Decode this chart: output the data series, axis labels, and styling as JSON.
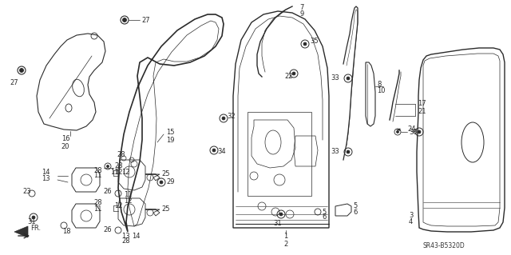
{
  "bg_color": "#ffffff",
  "line_color": "#2a2a2a",
  "diagram_code": "SR43-B5320D",
  "fig_w": 6.4,
  "fig_h": 3.19,
  "dpi": 100
}
